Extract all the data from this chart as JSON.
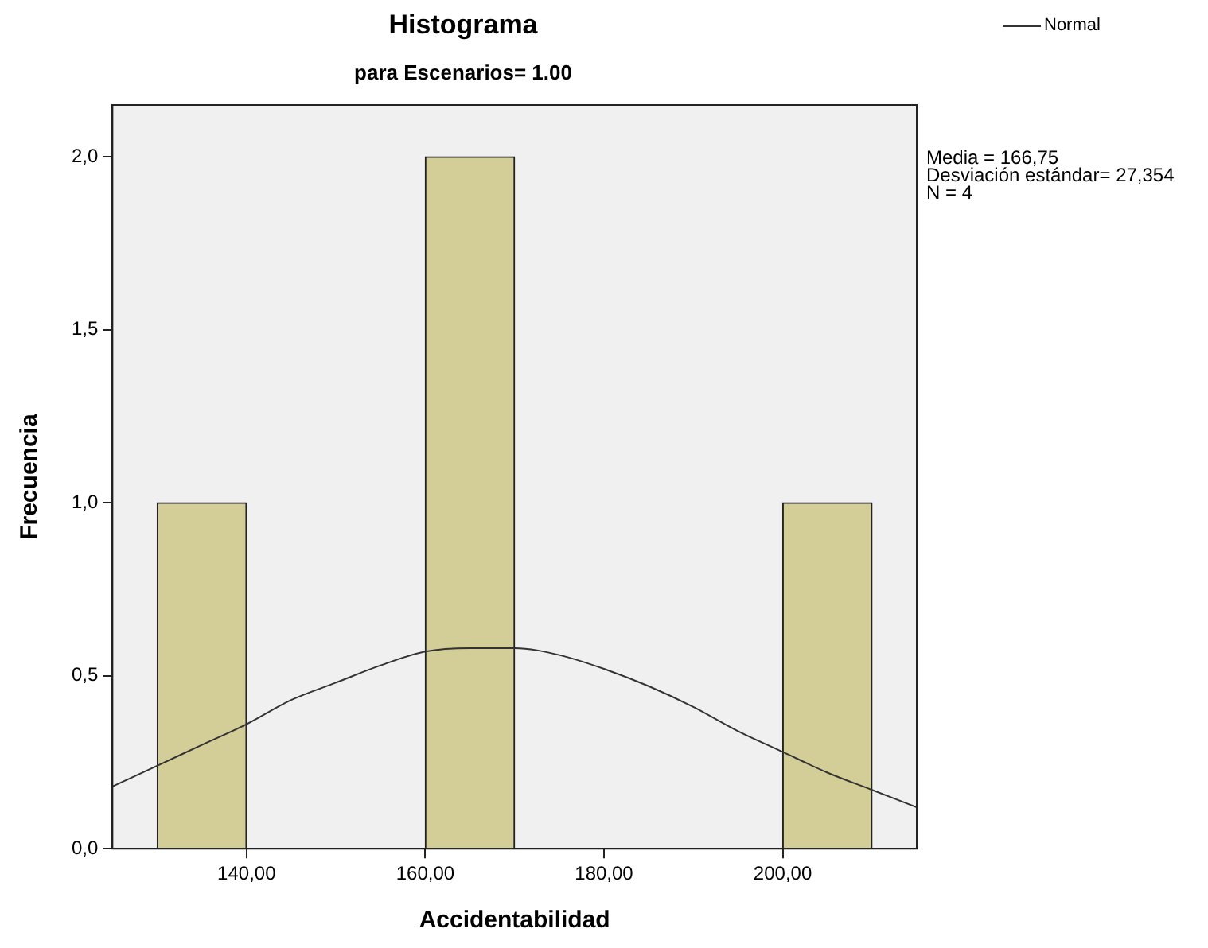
{
  "chart_data": {
    "type": "histogram",
    "title": "Histograma",
    "subtitle": "para Escenarios= 1.00",
    "xlabel": "Accidentabilidad",
    "ylabel": "Frecuencia",
    "bins": [
      130,
      140,
      150,
      160,
      170,
      180,
      190,
      200,
      210
    ],
    "values": [
      1,
      0,
      0,
      2,
      0,
      0,
      0,
      1
    ],
    "color": "#d3ce97",
    "series": [
      {
        "type": "line",
        "name": "Normal",
        "color": "#333333",
        "x": [
          125,
          130,
          135,
          140,
          145,
          150,
          155,
          160,
          165,
          166.75,
          170,
          175,
          180,
          185,
          190,
          195,
          200,
          205,
          210,
          215
        ],
        "values": [
          0.18,
          0.24,
          0.3,
          0.36,
          0.43,
          0.48,
          0.53,
          0.57,
          0.58,
          0.58,
          0.58,
          0.56,
          0.52,
          0.47,
          0.41,
          0.34,
          0.28,
          0.22,
          0.17,
          0.12
        ]
      }
    ],
    "xlim": [
      125,
      215
    ],
    "xticks": [
      {
        "value": 140,
        "label": "140,00"
      },
      {
        "value": 160,
        "label": "160,00"
      },
      {
        "value": 180,
        "label": "180,00"
      },
      {
        "value": 200,
        "label": "200,00"
      }
    ],
    "ylim": [
      0,
      2.15
    ],
    "yticks": [
      {
        "value": 0,
        "label": "0,0"
      },
      {
        "value": 0.5,
        "label": "0,5"
      },
      {
        "value": 1,
        "label": "1,0"
      },
      {
        "value": 1.5,
        "label": "1,5"
      },
      {
        "value": 2,
        "label": "2,0"
      }
    ],
    "annotations": [
      "Media = 166,75",
      "Desviación estándar= 27,354",
      "N = 4"
    ],
    "grid": false,
    "legend": "top right",
    "marker": "none"
  }
}
